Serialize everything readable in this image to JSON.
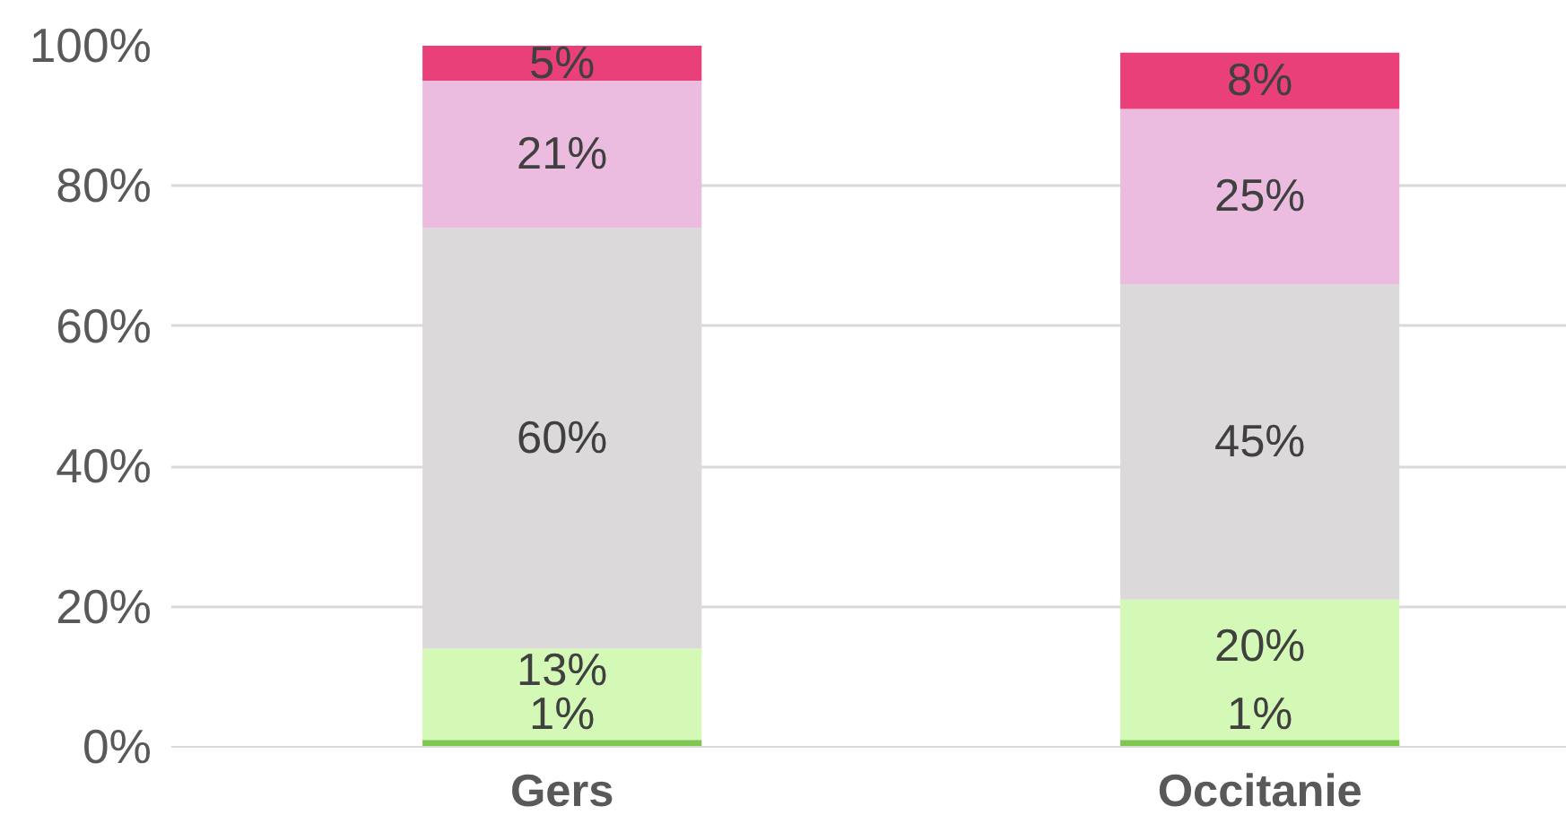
{
  "chart_data": {
    "type": "bar",
    "stacked": true,
    "categories": [
      "Gers",
      "Occitanie"
    ],
    "series": [
      {
        "color": "#7ec850",
        "values": [
          1,
          1
        ],
        "value_labels": [
          "1%",
          "1%"
        ]
      },
      {
        "color": "#d4f9b6",
        "values": [
          13,
          20
        ],
        "value_labels": [
          "13%",
          "20%"
        ]
      },
      {
        "color": "#dcd9da",
        "values": [
          60,
          45
        ],
        "value_labels": [
          "60%",
          "45%"
        ]
      },
      {
        "color": "#ebbcdf",
        "values": [
          21,
          25
        ],
        "value_labels": [
          "21%",
          "25%"
        ]
      },
      {
        "color": "#e9407a",
        "values": [
          5,
          8
        ],
        "value_labels": [
          "5%",
          "8%"
        ]
      }
    ],
    "ylim": [
      0,
      100
    ],
    "yticks": [
      {
        "value": 0,
        "label": "0%"
      },
      {
        "value": 20,
        "label": "20%"
      },
      {
        "value": 40,
        "label": "40%"
      },
      {
        "value": 60,
        "label": "60%"
      },
      {
        "value": 80,
        "label": "80%"
      },
      {
        "value": 100,
        "label": "100%"
      }
    ],
    "grid": "y"
  }
}
